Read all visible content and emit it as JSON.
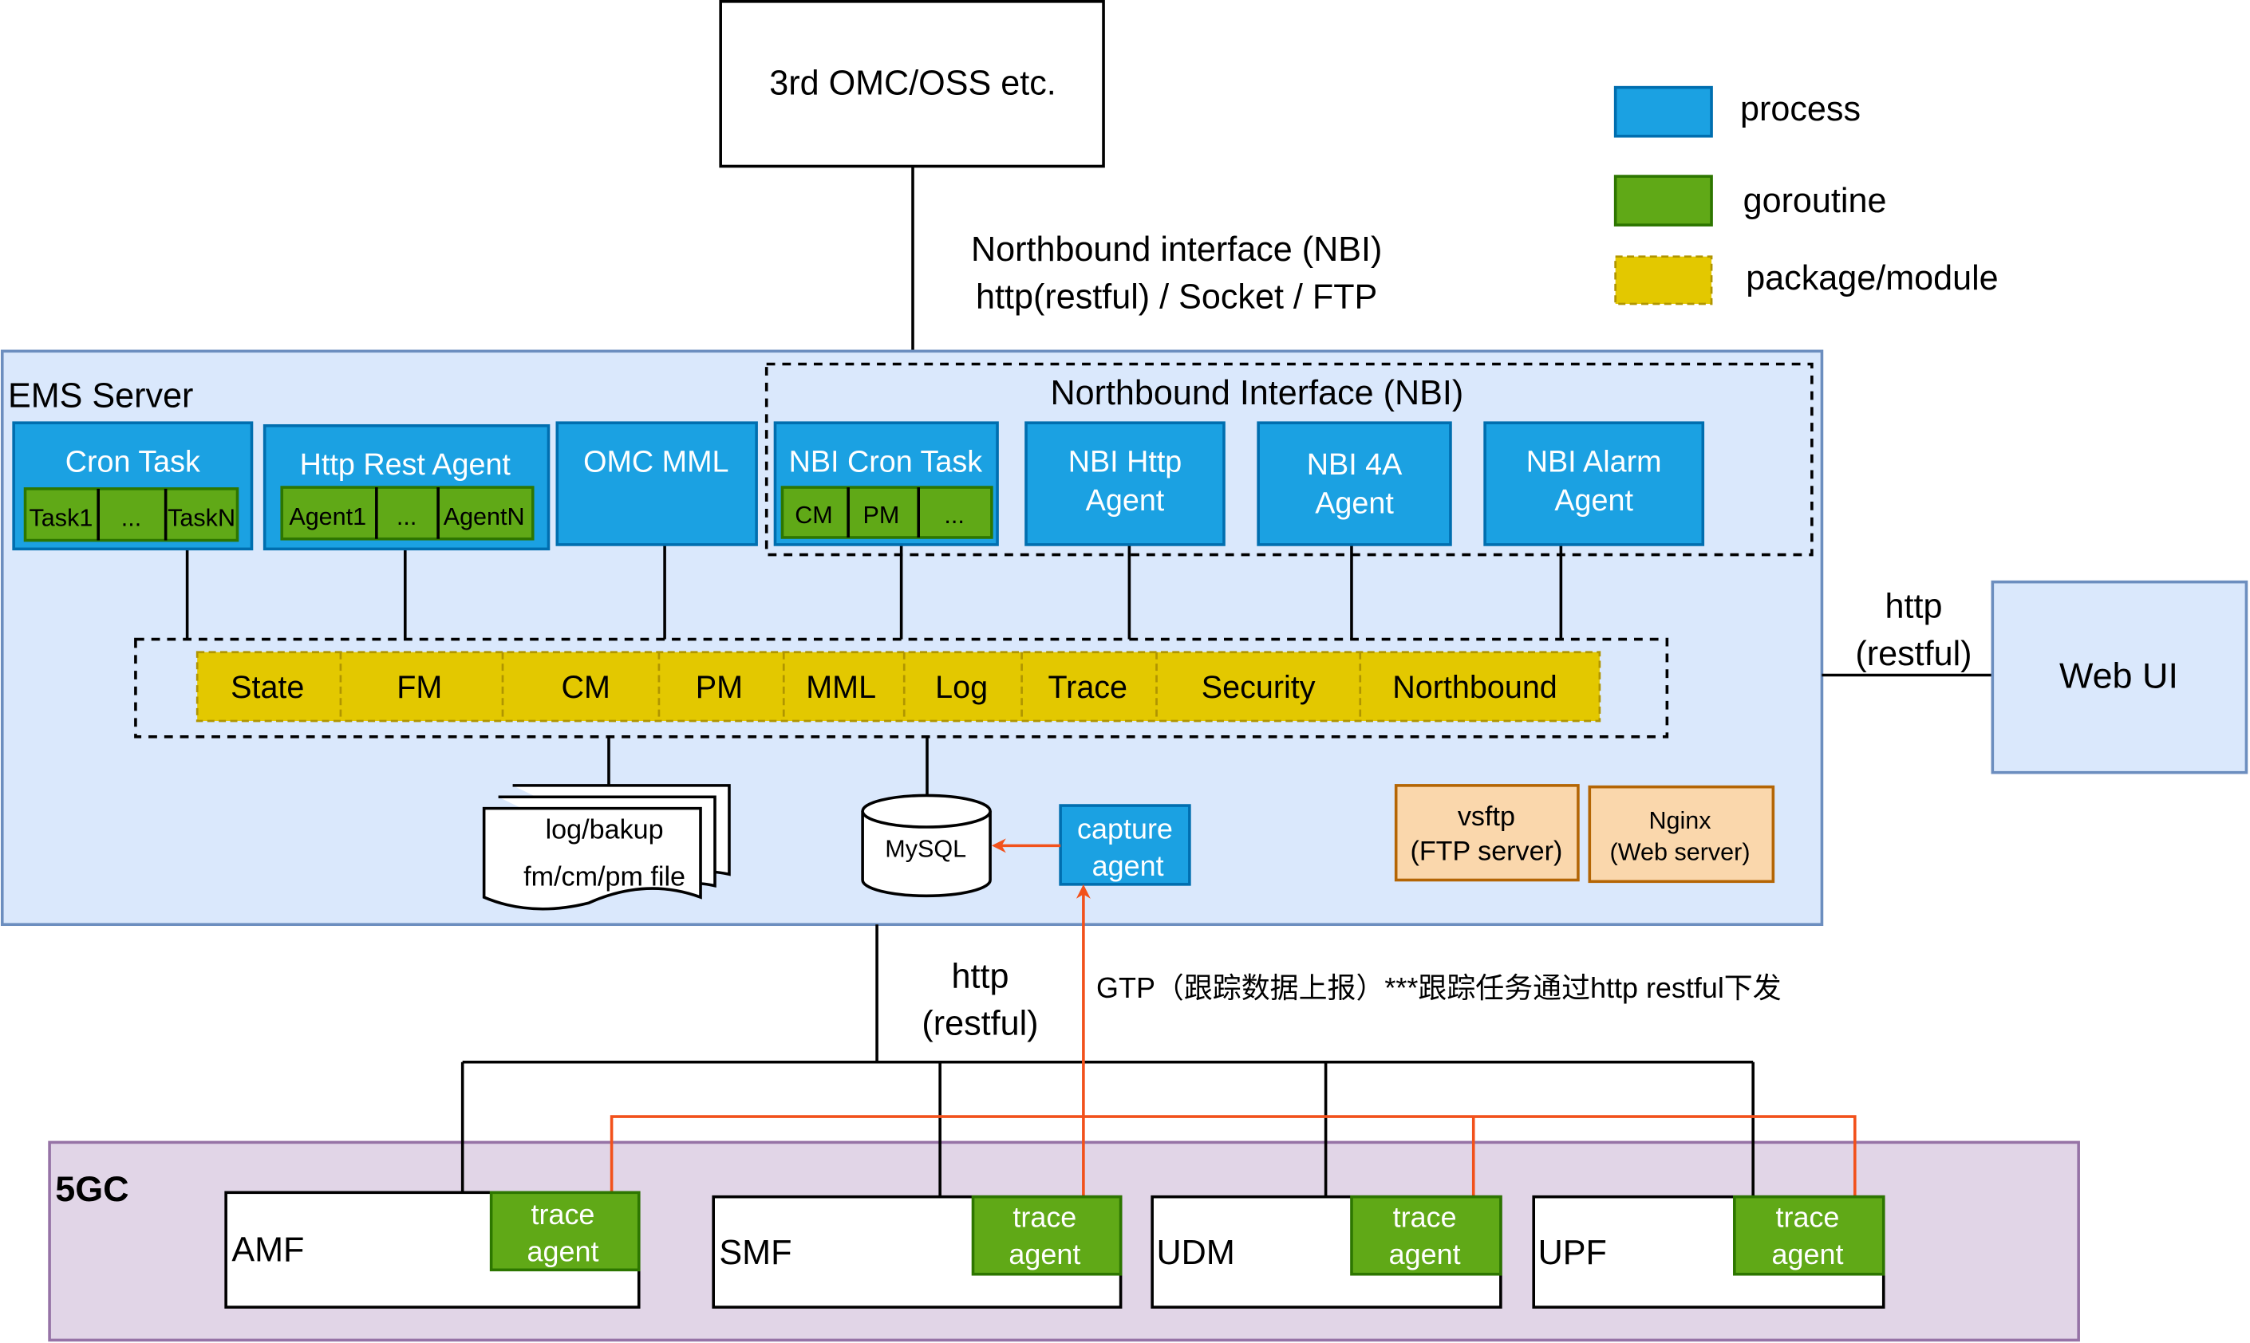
{
  "external": {
    "oss": "3rd OMC/OSS etc.",
    "nbi_line1": "Northbound interface (NBI)",
    "nbi_line2": "http(restful) / Socket / FTP"
  },
  "legend": [
    {
      "label": "process",
      "color": "#1ba1e2"
    },
    {
      "label": "goroutine",
      "color": "#60a917"
    },
    {
      "label": "package/module",
      "color": "#e3c800"
    }
  ],
  "ems": {
    "title": "EMS Server",
    "nbi_group": "Northbound Interface (NBI)",
    "cron": {
      "title": "Cron Task",
      "items": [
        "Task1",
        "...",
        "TaskN"
      ]
    },
    "http_rest": {
      "title": "Http Rest Agent",
      "items": [
        "Agent1",
        "...",
        "AgentN"
      ]
    },
    "omc_mml": "OMC MML",
    "nbi_cron": {
      "title": "NBI Cron Task",
      "items": [
        "CM",
        "PM",
        "..."
      ]
    },
    "nbi_http": [
      "NBI Http",
      "Agent"
    ],
    "nbi_4a": [
      "NBI 4A",
      "Agent"
    ],
    "nbi_alarm": [
      "NBI Alarm",
      "Agent"
    ],
    "packages": [
      "State",
      "FM",
      "CM",
      "PM",
      "MML",
      "Log",
      "Trace",
      "Security",
      "Northbound"
    ],
    "files": [
      "log/bakup",
      "fm/cm/pm file"
    ],
    "db": "MySQL",
    "capture": [
      "capture",
      "agent"
    ],
    "vsftp": [
      "vsftp",
      "(FTP server)"
    ],
    "nginx": [
      "Nginx",
      "(Web server)"
    ]
  },
  "webui": {
    "title": "Web UI",
    "link": [
      "http",
      "(restful)"
    ]
  },
  "south": {
    "link": [
      "http",
      "(restful)"
    ],
    "gtp": "GTP（跟踪数据上报）***跟踪任务通过http restful下发"
  },
  "core": {
    "title": "5GC",
    "nfs": [
      "AMF",
      "SMF",
      "UDM",
      "UPF"
    ],
    "agent": [
      "trace",
      "agent"
    ]
  },
  "colors": {
    "process": "#1ba1e2",
    "goroutine": "#60a917",
    "package": "#e3c800",
    "ems_bg": "#dae8fc",
    "core_bg": "#e1d5e7",
    "trace_arrow": "#f2511b"
  }
}
